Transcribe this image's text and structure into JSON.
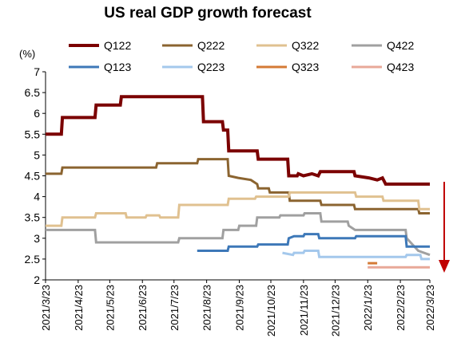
{
  "chart_data": {
    "type": "line",
    "title": "US real GDP growth forecast",
    "ylabel": "(%)",
    "xlabel": "",
    "ylim": [
      2,
      7
    ],
    "yticks": [
      "2",
      "2.5",
      "3",
      "3.5",
      "4",
      "4.5",
      "5",
      "5.5",
      "6",
      "6.5",
      "7"
    ],
    "x_tick_labels": [
      "2021/3/23",
      "2021/4/23",
      "2021/5/23",
      "2021/6/23",
      "2021/7/23",
      "2021/8/23",
      "2021/9/23",
      "2021/10/23",
      "2021/11/23",
      "2021/12/23",
      "2022/1/23",
      "2022/2/23",
      "2022/3/23"
    ],
    "legend_position": "top",
    "annotation": "downward arrow",
    "series": [
      {
        "name": "Q122",
        "color": "#7b0000",
        "points": [
          [
            "2021-03-23",
            5.5
          ],
          [
            "2021-04-07",
            5.5
          ],
          [
            "2021-04-08",
            5.9
          ],
          [
            "2021-05-09",
            5.9
          ],
          [
            "2021-05-10",
            6.2
          ],
          [
            "2021-06-02",
            6.2
          ],
          [
            "2021-06-03",
            6.4
          ],
          [
            "2021-08-19",
            6.4
          ],
          [
            "2021-08-20",
            5.8
          ],
          [
            "2021-09-07",
            5.8
          ],
          [
            "2021-09-08",
            5.6
          ],
          [
            "2021-09-12",
            5.6
          ],
          [
            "2021-09-13",
            5.1
          ],
          [
            "2021-10-10",
            5.1
          ],
          [
            "2021-10-11",
            4.9
          ],
          [
            "2021-11-08",
            4.9
          ],
          [
            "2021-11-09",
            4.5
          ],
          [
            "2021-11-17",
            4.5
          ],
          [
            "2021-11-18",
            4.55
          ],
          [
            "2021-11-23",
            4.5
          ],
          [
            "2021-12-01",
            4.55
          ],
          [
            "2021-12-07",
            4.5
          ],
          [
            "2021-12-09",
            4.6
          ],
          [
            "2022-01-10",
            4.6
          ],
          [
            "2022-01-11",
            4.5
          ],
          [
            "2022-01-24",
            4.45
          ],
          [
            "2022-02-01",
            4.4
          ],
          [
            "2022-02-06",
            4.45
          ],
          [
            "2022-02-09",
            4.3
          ],
          [
            "2022-03-23",
            4.3
          ]
        ]
      },
      {
        "name": "Q222",
        "color": "#8b6430",
        "points": [
          [
            "2021-03-23",
            4.55
          ],
          [
            "2021-04-07",
            4.55
          ],
          [
            "2021-04-08",
            4.7
          ],
          [
            "2021-07-06",
            4.7
          ],
          [
            "2021-07-07",
            4.8
          ],
          [
            "2021-08-14",
            4.8
          ],
          [
            "2021-08-15",
            4.9
          ],
          [
            "2021-09-12",
            4.9
          ],
          [
            "2021-09-13",
            4.5
          ],
          [
            "2021-09-22",
            4.45
          ],
          [
            "2021-10-04",
            4.4
          ],
          [
            "2021-10-10",
            4.3
          ],
          [
            "2021-10-11",
            4.2
          ],
          [
            "2021-10-21",
            4.2
          ],
          [
            "2021-10-22",
            4.1
          ],
          [
            "2021-11-09",
            4.1
          ],
          [
            "2021-11-10",
            3.9
          ],
          [
            "2021-12-09",
            3.9
          ],
          [
            "2021-12-10",
            3.8
          ],
          [
            "2022-01-10",
            3.8
          ],
          [
            "2022-01-11",
            3.7
          ],
          [
            "2022-03-12",
            3.7
          ],
          [
            "2022-03-13",
            3.6
          ],
          [
            "2022-03-23",
            3.6
          ]
        ]
      },
      {
        "name": "Q322",
        "color": "#e0c190",
        "points": [
          [
            "2021-03-23",
            3.3
          ],
          [
            "2021-04-07",
            3.3
          ],
          [
            "2021-04-08",
            3.5
          ],
          [
            "2021-05-09",
            3.5
          ],
          [
            "2021-05-10",
            3.6
          ],
          [
            "2021-06-07",
            3.6
          ],
          [
            "2021-06-08",
            3.5
          ],
          [
            "2021-06-26",
            3.5
          ],
          [
            "2021-06-27",
            3.55
          ],
          [
            "2021-07-09",
            3.55
          ],
          [
            "2021-07-10",
            3.5
          ],
          [
            "2021-07-27",
            3.5
          ],
          [
            "2021-07-28",
            3.8
          ],
          [
            "2021-09-12",
            3.8
          ],
          [
            "2021-09-13",
            3.95
          ],
          [
            "2021-10-08",
            3.95
          ],
          [
            "2021-10-09",
            4.0
          ],
          [
            "2021-11-09",
            4.0
          ],
          [
            "2021-11-10",
            4.1
          ],
          [
            "2022-01-11",
            4.1
          ],
          [
            "2022-01-12",
            4.0
          ],
          [
            "2022-02-06",
            4.0
          ],
          [
            "2022-02-07",
            3.9
          ],
          [
            "2022-03-12",
            3.9
          ],
          [
            "2022-03-13",
            3.7
          ],
          [
            "2022-03-23",
            3.7
          ]
        ]
      },
      {
        "name": "Q422",
        "color": "#a0a0a0",
        "points": [
          [
            "2021-03-23",
            3.2
          ],
          [
            "2021-05-09",
            3.2
          ],
          [
            "2021-05-10",
            2.9
          ],
          [
            "2021-07-27",
            2.9
          ],
          [
            "2021-07-28",
            3.0
          ],
          [
            "2021-09-07",
            3.0
          ],
          [
            "2021-09-08",
            3.2
          ],
          [
            "2021-09-22",
            3.2
          ],
          [
            "2021-09-23",
            3.3
          ],
          [
            "2021-10-09",
            3.3
          ],
          [
            "2021-10-10",
            3.5
          ],
          [
            "2021-10-31",
            3.5
          ],
          [
            "2021-11-01",
            3.55
          ],
          [
            "2021-11-23",
            3.55
          ],
          [
            "2021-11-24",
            3.6
          ],
          [
            "2021-12-09",
            3.6
          ],
          [
            "2021-12-10",
            3.4
          ],
          [
            "2022-01-04",
            3.4
          ],
          [
            "2022-01-05",
            3.3
          ],
          [
            "2022-01-11",
            3.2
          ],
          [
            "2022-02-28",
            3.2
          ],
          [
            "2022-03-01",
            3.0
          ],
          [
            "2022-03-12",
            2.7
          ],
          [
            "2022-03-23",
            2.6
          ]
        ]
      },
      {
        "name": "Q123",
        "color": "#3d78b8",
        "points": [
          [
            "2021-08-14",
            2.7
          ],
          [
            "2021-09-12",
            2.7
          ],
          [
            "2021-09-13",
            2.8
          ],
          [
            "2021-10-10",
            2.8
          ],
          [
            "2021-10-11",
            2.85
          ],
          [
            "2021-11-08",
            2.85
          ],
          [
            "2021-11-09",
            3.0
          ],
          [
            "2021-11-14",
            3.05
          ],
          [
            "2021-11-23",
            3.05
          ],
          [
            "2021-11-24",
            3.1
          ],
          [
            "2021-12-07",
            3.1
          ],
          [
            "2021-12-08",
            3.0
          ],
          [
            "2022-01-11",
            3.0
          ],
          [
            "2022-01-12",
            3.05
          ],
          [
            "2022-02-28",
            3.05
          ],
          [
            "2022-03-01",
            2.8
          ],
          [
            "2022-03-23",
            2.8
          ]
        ]
      },
      {
        "name": "Q223",
        "color": "#a4c8ec",
        "points": [
          [
            "2021-11-03",
            2.65
          ],
          [
            "2021-11-13",
            2.6
          ],
          [
            "2021-11-14",
            2.65
          ],
          [
            "2021-11-23",
            2.65
          ],
          [
            "2021-11-24",
            2.7
          ],
          [
            "2021-12-07",
            2.7
          ],
          [
            "2021-12-08",
            2.55
          ],
          [
            "2022-02-28",
            2.55
          ],
          [
            "2022-03-01",
            2.6
          ],
          [
            "2022-03-14",
            2.6
          ],
          [
            "2022-03-15",
            2.5
          ],
          [
            "2022-03-23",
            2.5
          ]
        ]
      },
      {
        "name": "Q323",
        "color": "#d47a35",
        "points": [
          [
            "2022-01-23",
            2.4
          ],
          [
            "2022-02-01",
            2.4
          ]
        ]
      },
      {
        "name": "Q423",
        "color": "#e8a898",
        "points": [
          [
            "2022-01-23",
            2.3
          ],
          [
            "2022-03-23",
            2.3
          ]
        ]
      }
    ]
  }
}
